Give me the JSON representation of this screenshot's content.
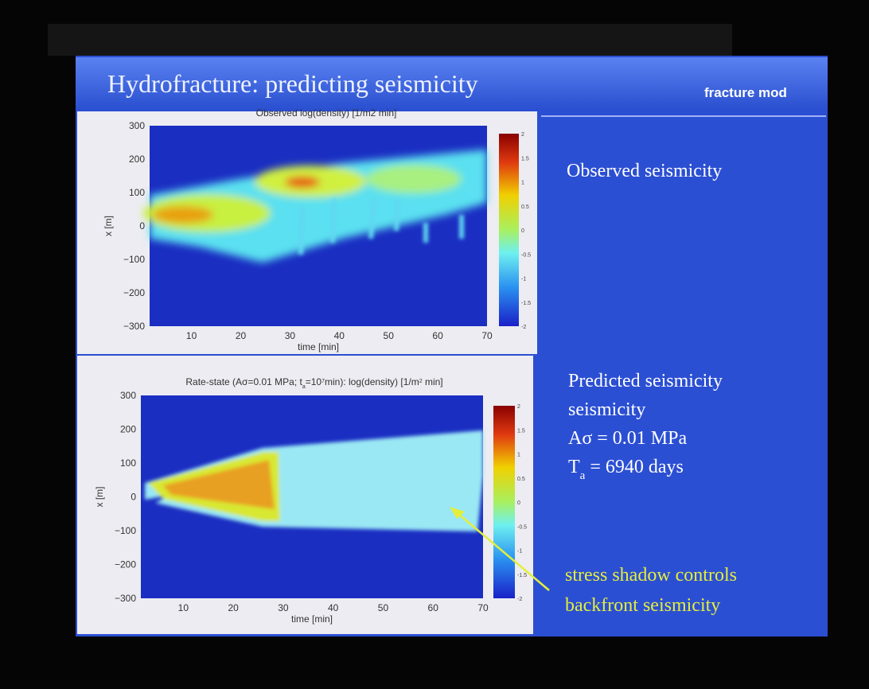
{
  "slide": {
    "title": "Hydrofracture: predicting seismicity",
    "tag": "fracture mod"
  },
  "panels": [
    {
      "title_parts": [
        {
          "text": "Observed log(density) [1/m2 min]"
        }
      ],
      "y_label": "x [m]",
      "x_label": "time [min]",
      "yticks": [
        "300",
        "200",
        "100",
        "0",
        "−100",
        "−200",
        "−300"
      ],
      "xticks": [
        "10",
        "20",
        "30",
        "40",
        "50",
        "60",
        "70"
      ],
      "colorbar_ticks": [
        "2",
        "1.5",
        "1",
        "0.5",
        "0",
        "-0.5",
        "-1",
        "-1.5",
        "-2"
      ]
    },
    {
      "title_parts": [
        {
          "text": "Rate-state (Aσ=0.01 MPa; t"
        },
        {
          "text": "a",
          "sub": true
        },
        {
          "text": "=10"
        },
        {
          "text": "7",
          "sup": true
        },
        {
          "text": "min): log(density) [1/m"
        },
        {
          "text": "2",
          "sup": true
        },
        {
          "text": " min]"
        }
      ],
      "y_label": "x [m]",
      "x_label": "time [min]",
      "yticks": [
        "300",
        "200",
        "100",
        "0",
        "−100",
        "−200",
        "−300"
      ],
      "xticks": [
        "10",
        "20",
        "30",
        "40",
        "50",
        "60",
        "70"
      ],
      "colorbar_ticks": [
        "2",
        "1.5",
        "1",
        "0.5",
        "0",
        "-0.5",
        "-1",
        "-1.5",
        "-2"
      ]
    }
  ],
  "right": {
    "observed": "Observed seismicity",
    "predicted": [
      {
        "text": "Predicted seismicity"
      },
      {
        "text": "seismicity"
      },
      {
        "text": "Aσ = 0.01 MPa"
      },
      {
        "text": "T",
        "sub": "a",
        "rest": " = 6940 days"
      }
    ],
    "note": [
      "stress shadow controls",
      "backfront seismicity"
    ]
  }
}
